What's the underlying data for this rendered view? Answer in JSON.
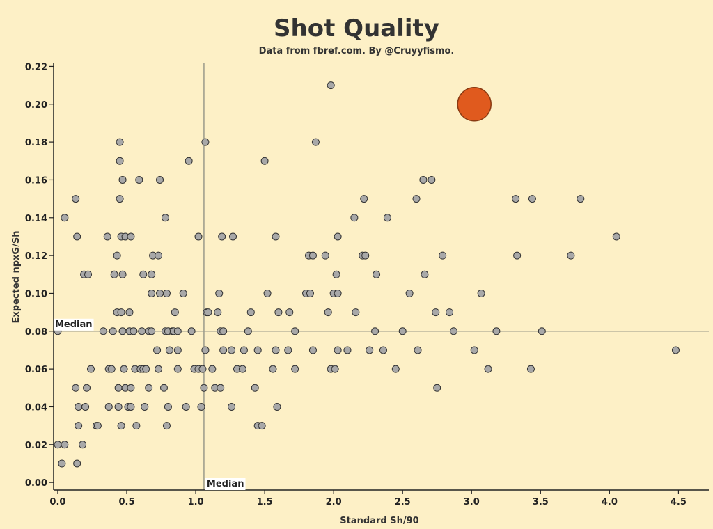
{
  "chart_data": {
    "type": "scatter",
    "title": "Shot Quality",
    "subtitle": "Data from fbref.com. By @Cruyyfismo.",
    "xlabel": "Standard Sh/90",
    "ylabel": "Expected npxG/Sh",
    "xlim": [
      -0.03,
      4.72
    ],
    "ylim": [
      -0.004,
      0.222
    ],
    "x_ticks": [
      0.0,
      0.5,
      1.0,
      1.5,
      2.0,
      2.5,
      3.0,
      3.5,
      4.0,
      4.5
    ],
    "x_tick_labels": [
      "0.0",
      "0.5",
      "1.0",
      "1.5",
      "2.0",
      "2.5",
      "3.0",
      "3.5",
      "4.0",
      "4.5"
    ],
    "y_ticks": [
      0.0,
      0.02,
      0.04,
      0.06,
      0.08,
      0.1,
      0.12,
      0.14,
      0.16,
      0.18,
      0.2,
      0.22
    ],
    "y_tick_labels": [
      "0.00",
      "0.02",
      "0.04",
      "0.06",
      "0.08",
      "0.10",
      "0.12",
      "0.14",
      "0.16",
      "0.18",
      "0.20",
      "0.22"
    ],
    "medians": {
      "x": 1.06,
      "y": 0.08,
      "x_label": "Median",
      "y_label": "Median"
    },
    "colors": {
      "background": "#fdf0c6",
      "point_fill": "#a8a8a8",
      "point_stroke": "#333333",
      "highlight_fill": "#e05a1e",
      "highlight_stroke": "#8a3a12",
      "median_line": "#9a9a8a",
      "axis": "#222222"
    },
    "highlight": {
      "x": 3.02,
      "y": 0.2
    },
    "points": [
      [
        0.0,
        0.02
      ],
      [
        0.03,
        0.01
      ],
      [
        0.05,
        0.02
      ],
      [
        0.14,
        0.01
      ],
      [
        0.18,
        0.02
      ],
      [
        0.15,
        0.03
      ],
      [
        0.28,
        0.03
      ],
      [
        0.29,
        0.03
      ],
      [
        0.46,
        0.03
      ],
      [
        0.57,
        0.03
      ],
      [
        0.79,
        0.03
      ],
      [
        1.45,
        0.03
      ],
      [
        1.48,
        0.03
      ],
      [
        0.15,
        0.04
      ],
      [
        0.2,
        0.04
      ],
      [
        0.37,
        0.04
      ],
      [
        0.44,
        0.04
      ],
      [
        0.51,
        0.04
      ],
      [
        0.53,
        0.04
      ],
      [
        0.63,
        0.04
      ],
      [
        0.8,
        0.04
      ],
      [
        0.93,
        0.04
      ],
      [
        1.04,
        0.04
      ],
      [
        1.26,
        0.04
      ],
      [
        1.59,
        0.04
      ],
      [
        0.13,
        0.05
      ],
      [
        0.21,
        0.05
      ],
      [
        0.44,
        0.05
      ],
      [
        0.49,
        0.05
      ],
      [
        0.53,
        0.05
      ],
      [
        0.66,
        0.05
      ],
      [
        0.77,
        0.05
      ],
      [
        1.06,
        0.05
      ],
      [
        1.14,
        0.05
      ],
      [
        1.18,
        0.05
      ],
      [
        1.43,
        0.05
      ],
      [
        2.75,
        0.05
      ],
      [
        0.24,
        0.06
      ],
      [
        0.37,
        0.06
      ],
      [
        0.39,
        0.06
      ],
      [
        0.48,
        0.06
      ],
      [
        0.56,
        0.06
      ],
      [
        0.6,
        0.06
      ],
      [
        0.62,
        0.06
      ],
      [
        0.64,
        0.06
      ],
      [
        0.73,
        0.06
      ],
      [
        0.87,
        0.06
      ],
      [
        0.99,
        0.06
      ],
      [
        1.02,
        0.06
      ],
      [
        1.05,
        0.06
      ],
      [
        1.12,
        0.06
      ],
      [
        1.3,
        0.06
      ],
      [
        1.34,
        0.06
      ],
      [
        1.56,
        0.06
      ],
      [
        1.72,
        0.06
      ],
      [
        1.98,
        0.06
      ],
      [
        2.01,
        0.06
      ],
      [
        2.45,
        0.06
      ],
      [
        3.12,
        0.06
      ],
      [
        3.43,
        0.06
      ],
      [
        0.72,
        0.07
      ],
      [
        0.81,
        0.07
      ],
      [
        0.87,
        0.07
      ],
      [
        1.07,
        0.07
      ],
      [
        1.2,
        0.07
      ],
      [
        1.26,
        0.07
      ],
      [
        1.35,
        0.07
      ],
      [
        1.45,
        0.07
      ],
      [
        1.58,
        0.07
      ],
      [
        1.67,
        0.07
      ],
      [
        1.85,
        0.07
      ],
      [
        2.03,
        0.07
      ],
      [
        2.1,
        0.07
      ],
      [
        2.26,
        0.07
      ],
      [
        2.36,
        0.07
      ],
      [
        2.61,
        0.07
      ],
      [
        3.02,
        0.07
      ],
      [
        4.48,
        0.07
      ],
      [
        0.0,
        0.08
      ],
      [
        0.33,
        0.08
      ],
      [
        0.4,
        0.08
      ],
      [
        0.47,
        0.08
      ],
      [
        0.52,
        0.08
      ],
      [
        0.55,
        0.08
      ],
      [
        0.61,
        0.08
      ],
      [
        0.66,
        0.08
      ],
      [
        0.68,
        0.08
      ],
      [
        0.78,
        0.08
      ],
      [
        0.8,
        0.08
      ],
      [
        0.83,
        0.08
      ],
      [
        0.84,
        0.08
      ],
      [
        0.87,
        0.08
      ],
      [
        0.97,
        0.08
      ],
      [
        1.18,
        0.08
      ],
      [
        1.2,
        0.08
      ],
      [
        1.38,
        0.08
      ],
      [
        1.72,
        0.08
      ],
      [
        2.3,
        0.08
      ],
      [
        2.5,
        0.08
      ],
      [
        2.87,
        0.08
      ],
      [
        3.18,
        0.08
      ],
      [
        3.51,
        0.08
      ],
      [
        0.43,
        0.09
      ],
      [
        0.46,
        0.09
      ],
      [
        0.52,
        0.09
      ],
      [
        0.85,
        0.09
      ],
      [
        1.08,
        0.09
      ],
      [
        1.09,
        0.09
      ],
      [
        1.16,
        0.09
      ],
      [
        1.4,
        0.09
      ],
      [
        1.6,
        0.09
      ],
      [
        1.68,
        0.09
      ],
      [
        1.96,
        0.09
      ],
      [
        2.16,
        0.09
      ],
      [
        2.74,
        0.09
      ],
      [
        2.84,
        0.09
      ],
      [
        0.68,
        0.1
      ],
      [
        0.74,
        0.1
      ],
      [
        0.79,
        0.1
      ],
      [
        0.91,
        0.1
      ],
      [
        1.17,
        0.1
      ],
      [
        1.52,
        0.1
      ],
      [
        1.8,
        0.1
      ],
      [
        1.83,
        0.1
      ],
      [
        2.0,
        0.1
      ],
      [
        2.03,
        0.1
      ],
      [
        2.55,
        0.1
      ],
      [
        3.07,
        0.1
      ],
      [
        0.19,
        0.11
      ],
      [
        0.22,
        0.11
      ],
      [
        0.41,
        0.11
      ],
      [
        0.47,
        0.11
      ],
      [
        0.62,
        0.11
      ],
      [
        0.68,
        0.11
      ],
      [
        2.02,
        0.11
      ],
      [
        2.31,
        0.11
      ],
      [
        2.66,
        0.11
      ],
      [
        0.43,
        0.12
      ],
      [
        0.69,
        0.12
      ],
      [
        0.73,
        0.12
      ],
      [
        1.82,
        0.12
      ],
      [
        1.85,
        0.12
      ],
      [
        1.94,
        0.12
      ],
      [
        2.21,
        0.12
      ],
      [
        2.23,
        0.12
      ],
      [
        2.79,
        0.12
      ],
      [
        3.33,
        0.12
      ],
      [
        3.72,
        0.12
      ],
      [
        0.14,
        0.13
      ],
      [
        0.36,
        0.13
      ],
      [
        0.46,
        0.13
      ],
      [
        0.49,
        0.13
      ],
      [
        0.53,
        0.13
      ],
      [
        1.02,
        0.13
      ],
      [
        1.19,
        0.13
      ],
      [
        1.27,
        0.13
      ],
      [
        1.58,
        0.13
      ],
      [
        2.03,
        0.13
      ],
      [
        4.05,
        0.13
      ],
      [
        0.05,
        0.14
      ],
      [
        0.78,
        0.14
      ],
      [
        2.15,
        0.14
      ],
      [
        2.39,
        0.14
      ],
      [
        0.13,
        0.15
      ],
      [
        0.45,
        0.15
      ],
      [
        2.22,
        0.15
      ],
      [
        2.6,
        0.15
      ],
      [
        3.32,
        0.15
      ],
      [
        3.44,
        0.15
      ],
      [
        3.79,
        0.15
      ],
      [
        0.47,
        0.16
      ],
      [
        0.59,
        0.16
      ],
      [
        0.74,
        0.16
      ],
      [
        2.65,
        0.16
      ],
      [
        2.71,
        0.16
      ],
      [
        0.45,
        0.17
      ],
      [
        0.95,
        0.17
      ],
      [
        1.5,
        0.17
      ],
      [
        0.45,
        0.18
      ],
      [
        1.07,
        0.18
      ],
      [
        1.87,
        0.18
      ],
      [
        1.98,
        0.21
      ]
    ]
  }
}
